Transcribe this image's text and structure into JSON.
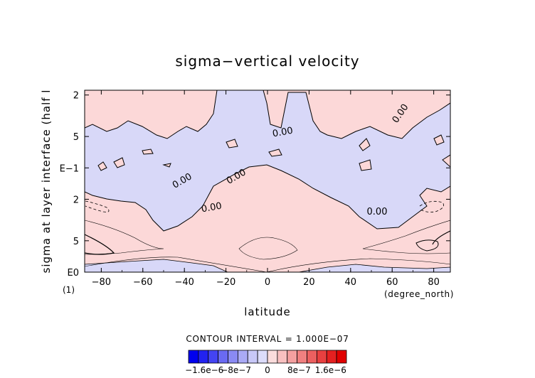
{
  "chart_data": {
    "type": "heatmap",
    "title": "sigma−vertical velocity",
    "xlabel": "latitude",
    "ylabel": "sigma at layer interface (half l",
    "x_unit": "(degree_north)",
    "y_extra": "(1)",
    "x_ticks": [
      "−80",
      "−60",
      "−40",
      "−20",
      "0",
      "20",
      "40",
      "60",
      "80"
    ],
    "x_tick_values": [
      -80,
      -60,
      -40,
      -20,
      0,
      20,
      40,
      60,
      80
    ],
    "xlim": [
      -88,
      88
    ],
    "y_scale": "log",
    "y_ticks": [
      "2",
      "5",
      "E−1",
      "2",
      "5",
      "E0"
    ],
    "y_tick_values": [
      0.02,
      0.05,
      0.1,
      0.2,
      0.5,
      1.0
    ],
    "ylim": [
      1.0,
      0.018
    ],
    "contour_labels": [
      "0.00",
      "0.00",
      "0.00",
      "0.00",
      "0.00",
      "0.00",
      "0.00"
    ],
    "contour_interval_text": "CONTOUR INTERVAL = 1.000E−07",
    "colorbar": {
      "tick_labels": [
        "−1.6e−6",
        "−8e−7",
        "0",
        "8e−7",
        "1.6e−6"
      ],
      "tick_values": [
        -1.6e-06,
        -8e-07,
        0,
        8e-07,
        1.6e-06
      ],
      "range": [
        -2e-06,
        2e-06
      ],
      "colors": [
        "#0000ee",
        "#2222f0",
        "#4444f2",
        "#6a6af2",
        "#8a8af4",
        "#aaaaf6",
        "#c8c8f8",
        "#dcdcfa",
        "#fadcdc",
        "#f8c0c0",
        "#f4a0a0",
        "#f08080",
        "#ec6060",
        "#e84040",
        "#e42020",
        "#e00000"
      ]
    },
    "fill_colors": {
      "positive": "#fcd8d8",
      "negative": "#d8d8f8"
    },
    "grid": false
  }
}
